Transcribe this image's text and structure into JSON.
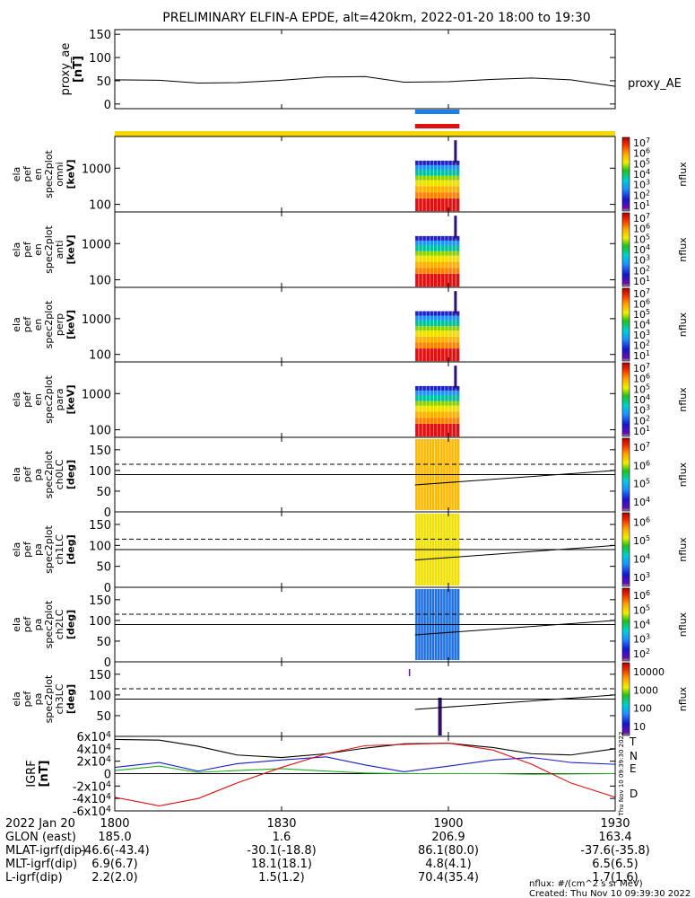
{
  "title": "PRELIMINARY ELFIN-A EPDE, alt=420km, 2022-01-20 18:00 to 19:30",
  "colors": {
    "frame": "#000000",
    "bar_blue": "#1e7fe6",
    "bar_red": "#e01010",
    "bar_yellow": "#f5d800",
    "grf_T": "#000000",
    "grf_N": "#1a1acc",
    "grf_E": "#20b020",
    "grf_D": "#dd1010"
  },
  "chart_data": [
    {
      "type": "line",
      "panel": "proxy_ae",
      "ylabel": "proxy_ae [nT]",
      "series": [
        {
          "name": "proxy_AE",
          "x": [
            "18:00",
            "18:08",
            "18:15",
            "18:22",
            "18:30",
            "18:38",
            "18:45",
            "18:52",
            "19:00",
            "19:08",
            "19:15",
            "19:22",
            "19:30"
          ],
          "values": [
            52,
            51,
            45,
            46,
            51,
            58,
            59,
            47,
            48,
            53,
            56,
            52,
            38
          ]
        }
      ],
      "yticks": [
        "0",
        "50",
        "100",
        "150"
      ],
      "ylim": [
        0,
        150
      ]
    },
    {
      "type": "heatmap",
      "panel": "ela_pef_en_spec2plot_omni",
      "ylabel_lines": [
        "ela",
        "pef",
        "en",
        "spec2plot",
        "omni",
        "[keV]"
      ],
      "yticks": [
        "100",
        "1000"
      ],
      "colorbar_ticks": [
        "10^1",
        "10^2",
        "10^3",
        "10^4",
        "10^5",
        "10^6",
        "10^7"
      ],
      "colorbar_label": "nflux"
    },
    {
      "type": "heatmap",
      "panel": "ela_pef_en_spec2plot_anti",
      "ylabel_lines": [
        "ela",
        "pef",
        "en",
        "spec2plot",
        "anti",
        "[keV]"
      ],
      "yticks": [
        "100",
        "1000"
      ],
      "colorbar_ticks": [
        "10^1",
        "10^2",
        "10^3",
        "10^4",
        "10^5",
        "10^6",
        "10^7"
      ],
      "colorbar_label": "nflux"
    },
    {
      "type": "heatmap",
      "panel": "ela_pef_en_spec2plot_perp",
      "ylabel_lines": [
        "ela",
        "pef",
        "en",
        "spec2plot",
        "perp",
        "[keV]"
      ],
      "yticks": [
        "100",
        "1000"
      ],
      "colorbar_ticks": [
        "10^1",
        "10^2",
        "10^3",
        "10^4",
        "10^5",
        "10^6",
        "10^7"
      ],
      "colorbar_label": "nflux"
    },
    {
      "type": "heatmap",
      "panel": "ela_pef_en_spec2plot_para",
      "ylabel_lines": [
        "ela",
        "pef",
        "en",
        "spec2plot",
        "para",
        "[keV]"
      ],
      "yticks": [
        "100",
        "1000"
      ],
      "colorbar_ticks": [
        "10^1",
        "10^2",
        "10^3",
        "10^4",
        "10^5",
        "10^6",
        "10^7"
      ],
      "colorbar_label": "nflux"
    },
    {
      "type": "heatmap",
      "panel": "ela_pef_pa_spec2plot_ch0LC",
      "ylabel_lines": [
        "ela",
        "pef",
        "pa",
        "spec2plot",
        "ch0LC",
        "[deg]"
      ],
      "yticks": [
        "0",
        "50",
        "100",
        "150"
      ],
      "ylim": [
        0,
        180
      ],
      "colorbar_ticks": [
        "10^4",
        "10^5",
        "10^6",
        "10^7"
      ],
      "colorbar_label": "nflux"
    },
    {
      "type": "heatmap",
      "panel": "ela_pef_pa_spec2plot_ch1LC",
      "ylabel_lines": [
        "ela",
        "pef",
        "pa",
        "spec2plot",
        "ch1LC",
        "[deg]"
      ],
      "yticks": [
        "0",
        "50",
        "100",
        "150"
      ],
      "ylim": [
        0,
        180
      ],
      "colorbar_ticks": [
        "10^3",
        "10^4",
        "10^5",
        "10^6"
      ],
      "colorbar_label": "nflux"
    },
    {
      "type": "heatmap",
      "panel": "ela_pef_pa_spec2plot_ch2LC",
      "ylabel_lines": [
        "ela",
        "pef",
        "pa",
        "spec2plot",
        "ch2LC",
        "[deg]"
      ],
      "yticks": [
        "0",
        "50",
        "100",
        "150"
      ],
      "ylim": [
        0,
        180
      ],
      "colorbar_ticks": [
        "10^2",
        "10^3",
        "10^4",
        "10^5",
        "10^6"
      ],
      "colorbar_label": "nflux"
    },
    {
      "type": "heatmap",
      "panel": "ela_pef_pa_spec2plot_ch3LC",
      "ylabel_lines": [
        "ela",
        "pef",
        "pa",
        "spec2plot",
        "ch3LC",
        "[deg]"
      ],
      "yticks": [
        "50",
        "100",
        "150"
      ],
      "ylim": [
        0,
        180
      ],
      "colorbar_ticks": [
        "10",
        "100",
        "1000",
        "10000"
      ],
      "colorbar_label": "nflux"
    },
    {
      "type": "line",
      "panel": "IGRF",
      "ylabel": "IGRF [nT]",
      "yticks": [
        "-6x10^4",
        "-4x10^4",
        "-2x10^4",
        "0",
        "2x10^4",
        "4x10^4",
        "6x10^4"
      ],
      "ylim": [
        -60000,
        60000
      ],
      "series": [
        {
          "name": "T",
          "x": [
            "18:00",
            "18:08",
            "18:15",
            "18:22",
            "18:30",
            "18:38",
            "18:45",
            "18:52",
            "19:00",
            "19:08",
            "19:15",
            "19:22",
            "19:30"
          ],
          "values": [
            55000,
            54000,
            44000,
            30000,
            26000,
            32000,
            41000,
            48000,
            49000,
            42000,
            32000,
            30000,
            40000
          ]
        },
        {
          "name": "N",
          "x": [
            "18:00",
            "18:08",
            "18:15",
            "18:22",
            "18:30",
            "18:38",
            "18:45",
            "18:52",
            "19:00",
            "19:08",
            "19:15",
            "19:22",
            "19:30"
          ],
          "values": [
            10000,
            18000,
            4000,
            16000,
            22000,
            27000,
            14000,
            3000,
            12000,
            22000,
            26000,
            18000,
            15000
          ]
        },
        {
          "name": "E",
          "x": [
            "18:00",
            "18:08",
            "18:15",
            "18:22",
            "18:30",
            "18:38",
            "18:45",
            "18:52",
            "19:00",
            "19:08",
            "19:15",
            "19:22",
            "19:30"
          ],
          "values": [
            5000,
            12000,
            2000,
            5000,
            8000,
            4000,
            1000,
            0,
            0,
            0,
            -1000,
            -500,
            0
          ]
        },
        {
          "name": "D",
          "x": [
            "18:00",
            "18:08",
            "18:15",
            "18:22",
            "18:30",
            "18:38",
            "18:45",
            "18:52",
            "19:00",
            "19:08",
            "19:15",
            "19:22",
            "19:30"
          ],
          "values": [
            -38000,
            -52000,
            -40000,
            -15000,
            10000,
            32000,
            45000,
            47000,
            49000,
            38000,
            15000,
            -15000,
            -38000
          ]
        }
      ]
    }
  ],
  "panel_labels": {
    "proxy_ae_ylabel": "proxy_ae",
    "proxy_ae_unit": "[nT]",
    "proxy_ae_right": "proxy_AE",
    "igrf_ylabel": "IGRF",
    "igrf_unit": "[nT]",
    "igrf_side": "Thu Nov 10 09:39:30 2022"
  },
  "footer": {
    "rows": [
      {
        "label": "2022 Jan 20",
        "values": [
          "1800",
          "1830",
          "1900",
          "1930"
        ]
      },
      {
        "label": "GLON (east)",
        "values": [
          "185.0",
          "1.6",
          "206.9",
          "163.4"
        ]
      },
      {
        "label": "MLAT-igrf(dip)",
        "values": [
          "-46.6(-43.4)",
          "-30.1(-18.8)",
          "86.1(80.0)",
          "-37.6(-35.8)"
        ]
      },
      {
        "label": "MLT-igrf(dip)",
        "values": [
          "6.9(6.7)",
          "18.1(18.1)",
          "4.8(4.1)",
          "6.5(6.5)"
        ]
      },
      {
        "label": "L-igrf(dip)",
        "values": [
          "2.2(2.0)",
          "1.5(1.2)",
          "70.4(35.4)",
          "1.7(1.6)"
        ]
      }
    ],
    "nflux_units": "nflux: #/(cm^2 s sr MeV)",
    "created": "Created: Thu Nov 10 09:39:30 2022"
  }
}
